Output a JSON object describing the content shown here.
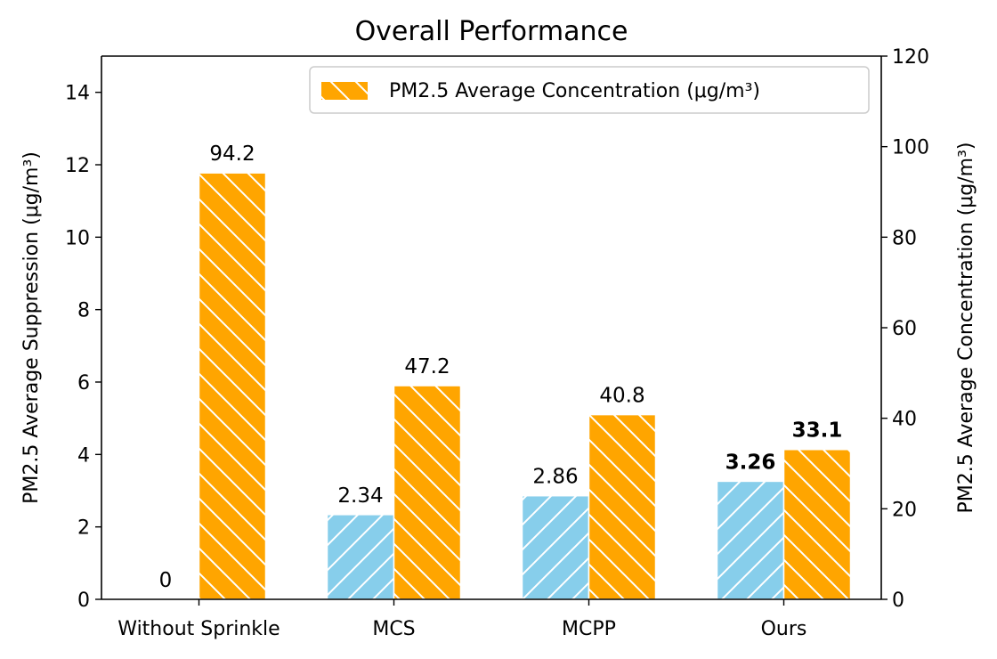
{
  "chart_data": {
    "type": "bar",
    "title": "Overall Performance",
    "categories": [
      "Without Sprinkle",
      "MCS",
      "MCPP",
      "Ours"
    ],
    "series": [
      {
        "name": "",
        "axis": "left",
        "color": "#87CEEB",
        "hatch": "forward-diagonal",
        "values": [
          0,
          2.34,
          2.86,
          3.26
        ],
        "labels": [
          "0",
          "2.34",
          "2.86",
          "3.26"
        ],
        "bold_last": true
      },
      {
        "name": "PM2.5 Average Concentration (μg/m³)",
        "axis": "right",
        "color": "#FFA500",
        "hatch": "back-diagonal",
        "values": [
          94.2,
          47.2,
          40.8,
          33.1
        ],
        "labels": [
          "94.2",
          "47.2",
          "40.8",
          "33.1"
        ],
        "bold_last": true
      }
    ],
    "ylabel_left": "PM2.5 Average Suppression (μg/m³)",
    "ylabel_right": "PM2.5 Average Concentration (μg/m³)",
    "ylim_left": [
      0,
      15
    ],
    "ylim_right": [
      0,
      120
    ],
    "yticks_left": [
      0,
      2,
      4,
      6,
      8,
      10,
      12,
      14
    ],
    "yticks_right": [
      0,
      20,
      40,
      60,
      80,
      100,
      120
    ],
    "grid": false,
    "legend_position": "top-right"
  }
}
